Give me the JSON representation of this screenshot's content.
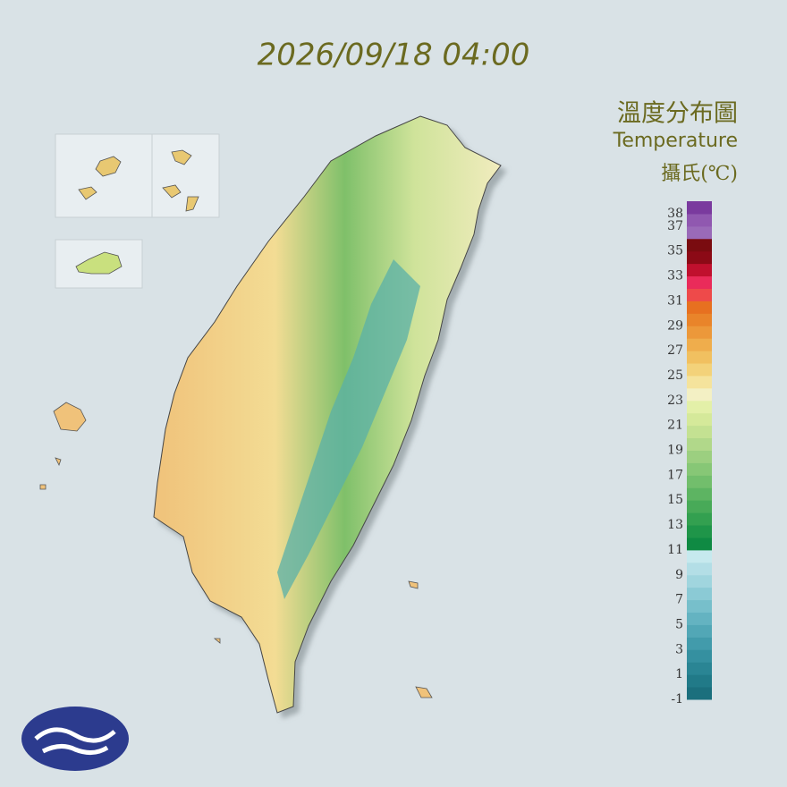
{
  "header": {
    "timestamp": "2026/09/18 04:00"
  },
  "legend": {
    "title": "溫度分布圖",
    "subtitle": "Temperature",
    "unit": "攝氏(℃)",
    "ticks": [
      38,
      37,
      35,
      33,
      31,
      29,
      27,
      25,
      23,
      21,
      19,
      17,
      15,
      13,
      11,
      9,
      7,
      5,
      3,
      1,
      -1
    ],
    "range": [
      -1,
      38
    ],
    "colors": [
      "#1b6f7d",
      "#217a88",
      "#2a8594",
      "#3590a0",
      "#429bab",
      "#52a7b6",
      "#64b3c1",
      "#77bfcb",
      "#8bcad5",
      "#a0d5de",
      "#b3dee6",
      "#c6e9ee",
      "#0f8a43",
      "#1f9549",
      "#33a050",
      "#48aa58",
      "#5db462",
      "#72be6c",
      "#87c776",
      "#9ccf80",
      "#b1d88a",
      "#c4e192",
      "#d5e99a",
      "#e3f0a8",
      "#f3f0c4",
      "#f5e39c",
      "#f3d27a",
      "#f1c060",
      "#efad4c",
      "#ec983a",
      "#e9842a",
      "#e77020",
      "#ee4a4a",
      "#ea2b5a",
      "#c0102e",
      "#8c0a16",
      "#7a0c10",
      "#9a6ab8",
      "#9058b0",
      "#7a3a9e"
    ]
  }
}
